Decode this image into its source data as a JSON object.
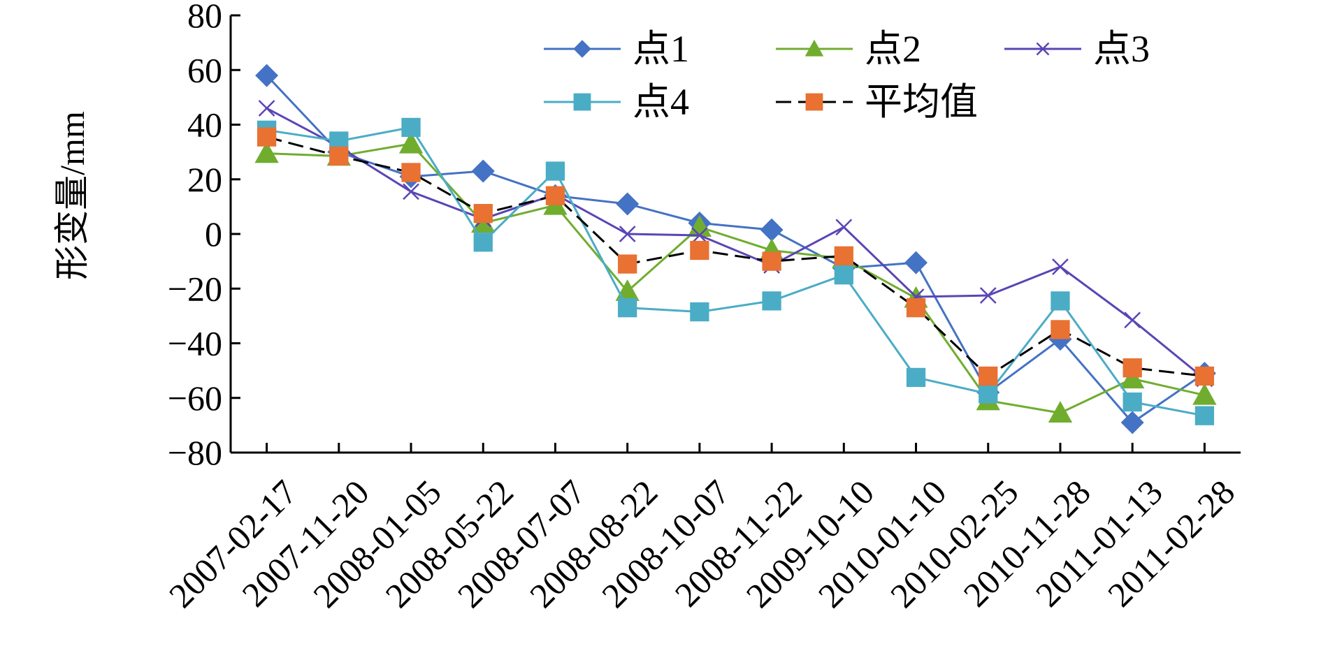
{
  "chart_data": {
    "type": "line",
    "title": "",
    "xlabel": "",
    "ylabel": "形变量/mm",
    "ylim": [
      -80,
      80
    ],
    "yticks": [
      80,
      60,
      40,
      20,
      0,
      -20,
      -40,
      -60,
      -80
    ],
    "ytick_labels": [
      "80",
      "60",
      "40",
      "20",
      "0",
      "−20",
      "−40",
      "−60",
      "−80"
    ],
    "grid": false,
    "legend_position": "top",
    "categories": [
      "2007-02-17",
      "2007-11-20",
      "2008-01-05",
      "2008-05-22",
      "2008-07-07",
      "2008-08-22",
      "2008-10-07",
      "2008-11-22",
      "2009-10-10",
      "2010-01-10",
      "2010-02-25",
      "2010-11-28",
      "2011-01-13",
      "2011-02-28"
    ],
    "series": [
      {
        "name": "点1",
        "color": "#4472C4",
        "marker": "diamond",
        "dash": "solid",
        "values": [
          58,
          30,
          21,
          23,
          14,
          11,
          4,
          1.5,
          -12.5,
          -10.5,
          -58,
          -38.5,
          -69,
          -51
        ]
      },
      {
        "name": "点2",
        "color": "#70AD2F",
        "marker": "triangle",
        "dash": "solid",
        "values": [
          29.5,
          28.5,
          33,
          4,
          10.5,
          -21,
          2.5,
          -6,
          -9,
          -23.5,
          -61,
          -65.5,
          -53,
          -59
        ]
      },
      {
        "name": "点3",
        "color": "#5B45B5",
        "marker": "x",
        "dash": "solid",
        "values": [
          46,
          32,
          15.5,
          5.5,
          14.5,
          0,
          -0.5,
          -11.5,
          2.5,
          -23,
          -22.5,
          -12,
          -31.5,
          -53
        ]
      },
      {
        "name": "点4",
        "color": "#4BACC6",
        "marker": "square",
        "dash": "solid",
        "values": [
          38,
          34,
          39,
          -3,
          23,
          -27,
          -28.5,
          -24.5,
          -15,
          -52.5,
          -58.5,
          -24.5,
          -61.5,
          -66.5
        ]
      },
      {
        "name": "平均值",
        "color": "#E97132",
        "line_color": "#000000",
        "marker": "square",
        "dash": "dashed",
        "values": [
          35.5,
          28.5,
          22.5,
          7.5,
          14,
          -11,
          -6,
          -10,
          -8,
          -27,
          -52,
          -35,
          -49,
          -52
        ]
      }
    ]
  }
}
